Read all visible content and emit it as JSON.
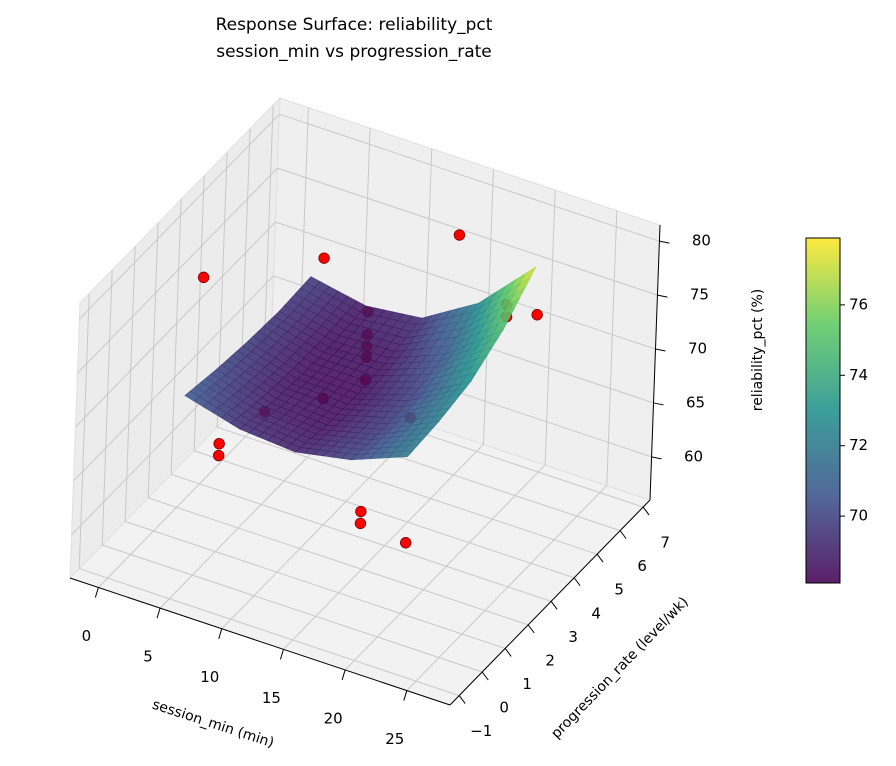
{
  "chart_data": {
    "type": "surface3d",
    "title": "Response Surface: reliability_pct",
    "subtitle": "session_min vs progression_rate",
    "xlabel": "session_min (min)",
    "ylabel": "progression_rate (level/wk)",
    "zlabel": "reliability_pct (%)",
    "xlim": [
      -2.3,
      28.5
    ],
    "ylim": [
      -1.4,
      7.3
    ],
    "zlim": [
      56,
      81.5
    ],
    "xticks": [
      0,
      5,
      10,
      15,
      20,
      25
    ],
    "yticks": [
      {
        "value": -1,
        "label": "−1"
      },
      0,
      1,
      2,
      3,
      4,
      5,
      6,
      7
    ],
    "zticks": [
      60,
      65,
      70,
      75,
      80
    ],
    "grid": true,
    "surface": {
      "colormap": "viridis",
      "x": [
        3,
        7.5,
        12,
        16.5,
        21
      ],
      "y": [
        0.5,
        1.875,
        3.25,
        4.625,
        6
      ],
      "z": [
        [
          70.8,
          70.2,
          69.8,
          69.6,
          69.8
        ],
        [
          69.4,
          68.8,
          68.5,
          68.5,
          68.8
        ],
        [
          69.0,
          68.5,
          68.4,
          68.7,
          69.4
        ],
        [
          70.0,
          69.8,
          70.0,
          70.8,
          72.5
        ],
        [
          72.0,
          72.3,
          73.0,
          74.8,
          77.6
        ]
      ]
    },
    "points": {
      "color": "#ff0000",
      "x": [
        13,
        13,
        13,
        13,
        13,
        13,
        13,
        22,
        22,
        5,
        5,
        1.5,
        5,
        7,
        4,
        13,
        21,
        21,
        23
      ],
      "y": [
        3,
        3,
        3,
        3,
        3,
        3,
        3,
        0,
        0,
        1,
        1,
        2,
        3,
        4.5,
        6,
        7,
        4.75,
        4.75,
        5
      ],
      "z": [
        76.9,
        74.8,
        73.7,
        72.7,
        70.6,
        58.4,
        57.3,
        65.5,
        77.1,
        66.0,
        64.9,
        77.9,
        64.6,
        63.3,
        71.9,
        75.3,
        76.8,
        75.7,
        76.1
      ]
    },
    "colorbar": {
      "lim": [
        68.1,
        77.9
      ],
      "ticks": [
        70,
        72,
        74,
        76
      ]
    }
  }
}
